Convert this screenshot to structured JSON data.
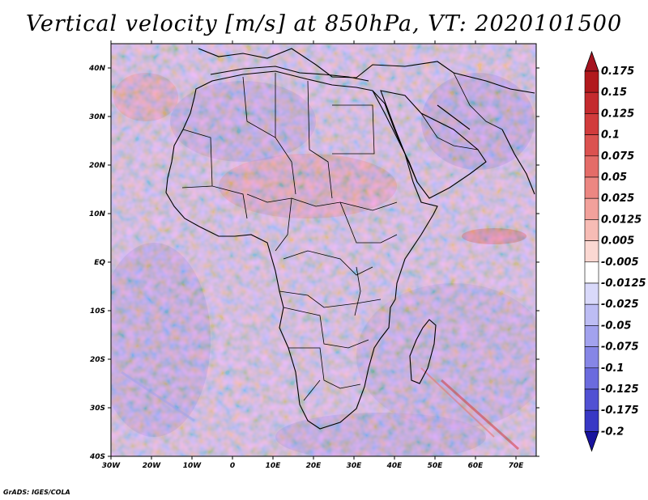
{
  "title": "Vertical velocity [m/s] at 850hPa, VT: 2020101500",
  "credit": "GrADS: IGES/COLA",
  "map": {
    "lon_range": [
      -30,
      75
    ],
    "lat_range": [
      -40,
      45
    ],
    "lon_ticks": [
      {
        "value": -30,
        "label": "30W"
      },
      {
        "value": -20,
        "label": "20W"
      },
      {
        "value": -10,
        "label": "10W"
      },
      {
        "value": 0,
        "label": "0"
      },
      {
        "value": 10,
        "label": "10E"
      },
      {
        "value": 20,
        "label": "20E"
      },
      {
        "value": 30,
        "label": "30E"
      },
      {
        "value": 40,
        "label": "40E"
      },
      {
        "value": 50,
        "label": "50E"
      },
      {
        "value": 60,
        "label": "60E"
      },
      {
        "value": 70,
        "label": "70E"
      }
    ],
    "lat_ticks": [
      {
        "value": 40,
        "label": "40N"
      },
      {
        "value": 30,
        "label": "30N"
      },
      {
        "value": 20,
        "label": "20N"
      },
      {
        "value": 10,
        "label": "10N"
      },
      {
        "value": 0,
        "label": "EQ"
      },
      {
        "value": -10,
        "label": "10S"
      },
      {
        "value": -20,
        "label": "20S"
      },
      {
        "value": -30,
        "label": "30S"
      },
      {
        "value": -40,
        "label": "40S"
      }
    ],
    "colorbar": [
      {
        "label": "0.175",
        "color": "#b1191d"
      },
      {
        "label": "0.15",
        "color": "#c42a2e"
      },
      {
        "label": "0.125",
        "color": "#d13b3c"
      },
      {
        "label": "0.1",
        "color": "#db5250"
      },
      {
        "label": "0.075",
        "color": "#e46c68"
      },
      {
        "label": "0.05",
        "color": "#ec8782"
      },
      {
        "label": "0.025",
        "color": "#f2a19b"
      },
      {
        "label": "0.0125",
        "color": "#f7bcb5"
      },
      {
        "label": "0.005",
        "color": "#fbd8d2"
      },
      {
        "label": "-0.005",
        "color": "#ffffff"
      },
      {
        "label": "-0.0125",
        "color": "#d9d9fa"
      },
      {
        "label": "-0.025",
        "color": "#bdbdf4"
      },
      {
        "label": "-0.05",
        "color": "#a2a2ee"
      },
      {
        "label": "-0.075",
        "color": "#8686e6"
      },
      {
        "label": "-0.1",
        "color": "#6b6bde"
      },
      {
        "label": "-0.125",
        "color": "#5151d3"
      },
      {
        "label": "-0.175",
        "color": "#3838c5"
      },
      {
        "label": "-0.2",
        "color": "#2424b3"
      }
    ],
    "colorbar_top_color": "#a51420",
    "colorbar_bottom_color": "#18139e"
  }
}
